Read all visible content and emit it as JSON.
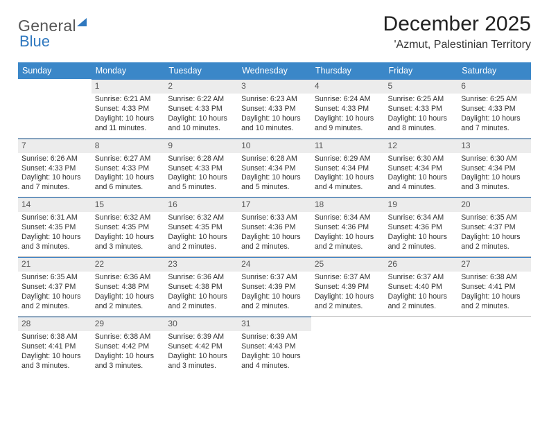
{
  "logo": {
    "part1": "Genera",
    "part2": "l",
    "part3": "Blue"
  },
  "title": "December 2025",
  "location": "'Azmut, Palestinian Territory",
  "colors": {
    "header_bg": "#3b87c8",
    "header_text": "#ffffff",
    "daynum_bg": "#ececec",
    "daynum_border": "#2f78bf",
    "row_divider": "#bfbfbf",
    "logo_blue": "#2f78bf",
    "logo_gray": "#565656"
  },
  "weekdays": [
    "Sunday",
    "Monday",
    "Tuesday",
    "Wednesday",
    "Thursday",
    "Friday",
    "Saturday"
  ],
  "weeks": [
    [
      null,
      {
        "n": "1",
        "sr": "Sunrise: 6:21 AM",
        "ss": "Sunset: 4:33 PM",
        "dl": "Daylight: 10 hours and 11 minutes."
      },
      {
        "n": "2",
        "sr": "Sunrise: 6:22 AM",
        "ss": "Sunset: 4:33 PM",
        "dl": "Daylight: 10 hours and 10 minutes."
      },
      {
        "n": "3",
        "sr": "Sunrise: 6:23 AM",
        "ss": "Sunset: 4:33 PM",
        "dl": "Daylight: 10 hours and 10 minutes."
      },
      {
        "n": "4",
        "sr": "Sunrise: 6:24 AM",
        "ss": "Sunset: 4:33 PM",
        "dl": "Daylight: 10 hours and 9 minutes."
      },
      {
        "n": "5",
        "sr": "Sunrise: 6:25 AM",
        "ss": "Sunset: 4:33 PM",
        "dl": "Daylight: 10 hours and 8 minutes."
      },
      {
        "n": "6",
        "sr": "Sunrise: 6:25 AM",
        "ss": "Sunset: 4:33 PM",
        "dl": "Daylight: 10 hours and 7 minutes."
      }
    ],
    [
      {
        "n": "7",
        "sr": "Sunrise: 6:26 AM",
        "ss": "Sunset: 4:33 PM",
        "dl": "Daylight: 10 hours and 7 minutes."
      },
      {
        "n": "8",
        "sr": "Sunrise: 6:27 AM",
        "ss": "Sunset: 4:33 PM",
        "dl": "Daylight: 10 hours and 6 minutes."
      },
      {
        "n": "9",
        "sr": "Sunrise: 6:28 AM",
        "ss": "Sunset: 4:33 PM",
        "dl": "Daylight: 10 hours and 5 minutes."
      },
      {
        "n": "10",
        "sr": "Sunrise: 6:28 AM",
        "ss": "Sunset: 4:34 PM",
        "dl": "Daylight: 10 hours and 5 minutes."
      },
      {
        "n": "11",
        "sr": "Sunrise: 6:29 AM",
        "ss": "Sunset: 4:34 PM",
        "dl": "Daylight: 10 hours and 4 minutes."
      },
      {
        "n": "12",
        "sr": "Sunrise: 6:30 AM",
        "ss": "Sunset: 4:34 PM",
        "dl": "Daylight: 10 hours and 4 minutes."
      },
      {
        "n": "13",
        "sr": "Sunrise: 6:30 AM",
        "ss": "Sunset: 4:34 PM",
        "dl": "Daylight: 10 hours and 3 minutes."
      }
    ],
    [
      {
        "n": "14",
        "sr": "Sunrise: 6:31 AM",
        "ss": "Sunset: 4:35 PM",
        "dl": "Daylight: 10 hours and 3 minutes."
      },
      {
        "n": "15",
        "sr": "Sunrise: 6:32 AM",
        "ss": "Sunset: 4:35 PM",
        "dl": "Daylight: 10 hours and 3 minutes."
      },
      {
        "n": "16",
        "sr": "Sunrise: 6:32 AM",
        "ss": "Sunset: 4:35 PM",
        "dl": "Daylight: 10 hours and 2 minutes."
      },
      {
        "n": "17",
        "sr": "Sunrise: 6:33 AM",
        "ss": "Sunset: 4:36 PM",
        "dl": "Daylight: 10 hours and 2 minutes."
      },
      {
        "n": "18",
        "sr": "Sunrise: 6:34 AM",
        "ss": "Sunset: 4:36 PM",
        "dl": "Daylight: 10 hours and 2 minutes."
      },
      {
        "n": "19",
        "sr": "Sunrise: 6:34 AM",
        "ss": "Sunset: 4:36 PM",
        "dl": "Daylight: 10 hours and 2 minutes."
      },
      {
        "n": "20",
        "sr": "Sunrise: 6:35 AM",
        "ss": "Sunset: 4:37 PM",
        "dl": "Daylight: 10 hours and 2 minutes."
      }
    ],
    [
      {
        "n": "21",
        "sr": "Sunrise: 6:35 AM",
        "ss": "Sunset: 4:37 PM",
        "dl": "Daylight: 10 hours and 2 minutes."
      },
      {
        "n": "22",
        "sr": "Sunrise: 6:36 AM",
        "ss": "Sunset: 4:38 PM",
        "dl": "Daylight: 10 hours and 2 minutes."
      },
      {
        "n": "23",
        "sr": "Sunrise: 6:36 AM",
        "ss": "Sunset: 4:38 PM",
        "dl": "Daylight: 10 hours and 2 minutes."
      },
      {
        "n": "24",
        "sr": "Sunrise: 6:37 AM",
        "ss": "Sunset: 4:39 PM",
        "dl": "Daylight: 10 hours and 2 minutes."
      },
      {
        "n": "25",
        "sr": "Sunrise: 6:37 AM",
        "ss": "Sunset: 4:39 PM",
        "dl": "Daylight: 10 hours and 2 minutes."
      },
      {
        "n": "26",
        "sr": "Sunrise: 6:37 AM",
        "ss": "Sunset: 4:40 PM",
        "dl": "Daylight: 10 hours and 2 minutes."
      },
      {
        "n": "27",
        "sr": "Sunrise: 6:38 AM",
        "ss": "Sunset: 4:41 PM",
        "dl": "Daylight: 10 hours and 2 minutes."
      }
    ],
    [
      {
        "n": "28",
        "sr": "Sunrise: 6:38 AM",
        "ss": "Sunset: 4:41 PM",
        "dl": "Daylight: 10 hours and 3 minutes."
      },
      {
        "n": "29",
        "sr": "Sunrise: 6:38 AM",
        "ss": "Sunset: 4:42 PM",
        "dl": "Daylight: 10 hours and 3 minutes."
      },
      {
        "n": "30",
        "sr": "Sunrise: 6:39 AM",
        "ss": "Sunset: 4:42 PM",
        "dl": "Daylight: 10 hours and 3 minutes."
      },
      {
        "n": "31",
        "sr": "Sunrise: 6:39 AM",
        "ss": "Sunset: 4:43 PM",
        "dl": "Daylight: 10 hours and 4 minutes."
      },
      null,
      null,
      null
    ]
  ]
}
